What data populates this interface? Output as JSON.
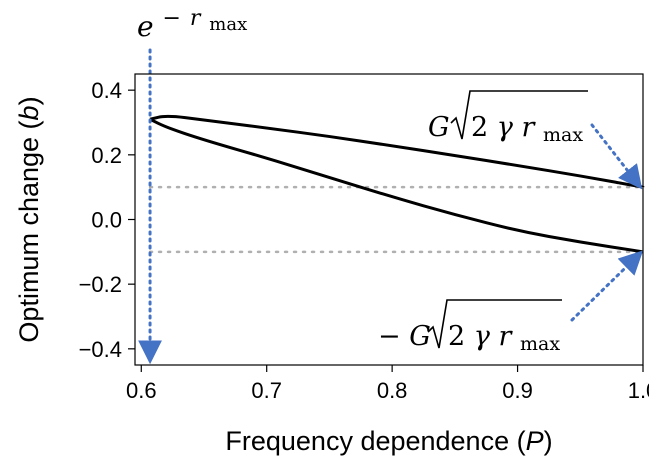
{
  "chart_data": {
    "type": "line",
    "xlabel": "Frequency dependence",
    "xlabel_var": "P",
    "ylabel": "Optimum change",
    "ylabel_var": "b",
    "xlim": [
      0.595,
      1.0
    ],
    "ylim": [
      -0.45,
      0.45
    ],
    "xticks": [
      0.6,
      0.7,
      0.8,
      0.9,
      1.0
    ],
    "xtick_labels": [
      "0.6",
      "0.7",
      "0.8",
      "0.9",
      "1.0"
    ],
    "yticks": [
      -0.4,
      -0.2,
      0.0,
      0.2,
      0.4
    ],
    "ytick_labels": [
      "−0.4",
      "−0.2",
      "0.0",
      "0.2",
      "0.4"
    ],
    "grid": false,
    "series": [
      {
        "color": "#000000",
        "x": [
          0.607,
          0.62,
          0.65,
          0.7,
          0.75,
          0.8,
          0.85,
          0.9,
          0.95,
          1.0
        ],
        "y": [
          0.31,
          0.322,
          0.308,
          0.283,
          0.257,
          0.228,
          0.198,
          0.167,
          0.135,
          0.1
        ]
      },
      {
        "color": "#000000",
        "x": [
          0.607,
          0.62,
          0.65,
          0.7,
          0.75,
          0.8,
          0.85,
          0.9,
          0.95,
          1.0
        ],
        "y": [
          0.31,
          0.285,
          0.246,
          0.19,
          0.13,
          0.07,
          0.015,
          -0.035,
          -0.07,
          -0.1
        ]
      }
    ],
    "reference_lines": [
      {
        "y": 0.1,
        "x_from": 0.607,
        "x_to": 1.0,
        "color": "#b0b0b0",
        "style": "dotted"
      },
      {
        "y": -0.1,
        "x_from": 0.607,
        "x_to": 1.0,
        "color": "#b0b0b0",
        "style": "dotted"
      }
    ],
    "annotations": {
      "top_formula": {
        "base": "e",
        "sup_minus": "−",
        "sup_var": "r",
        "sup_sub": "max"
      },
      "upper_formula": {
        "sign": "",
        "coef": "G",
        "radical_num": "2",
        "radical_var1": "γ",
        "radical_var2": "r",
        "radical_sub": "max"
      },
      "lower_formula": {
        "sign": "−",
        "coef": "G",
        "radical_num": "2",
        "radical_var1": "γ",
        "radical_var2": "r",
        "radical_sub": "max"
      },
      "arrow_color": "#4472c4"
    }
  }
}
